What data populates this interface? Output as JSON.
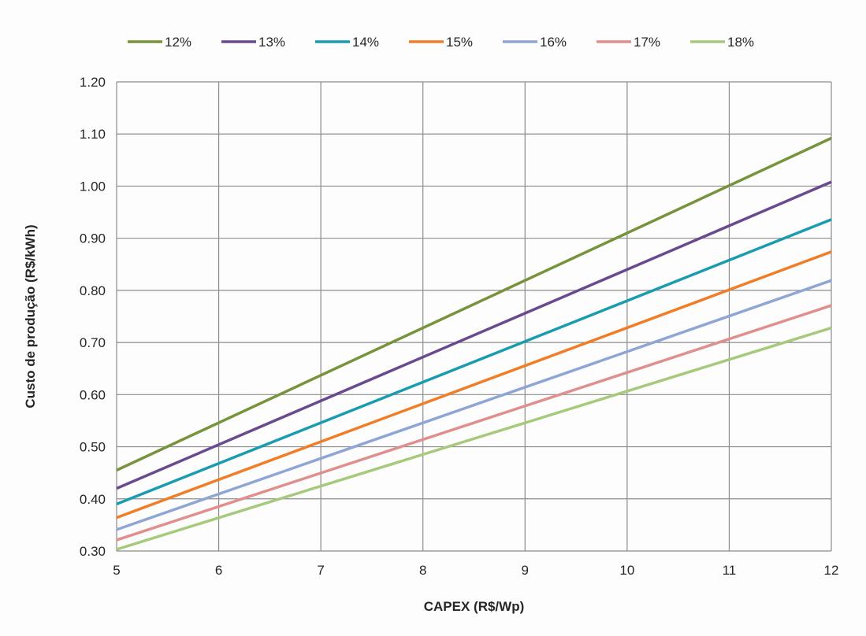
{
  "chart_data": {
    "type": "line",
    "xlabel": "CAPEX (R$/Wp)",
    "ylabel": "Custo de produção (R$/kWh)",
    "xlim": [
      5,
      12
    ],
    "ylim": [
      0.3,
      1.2
    ],
    "x_ticks": [
      "5",
      "6",
      "7",
      "8",
      "9",
      "10",
      "11",
      "12"
    ],
    "y_ticks": [
      "0.30",
      "0.40",
      "0.50",
      "0.60",
      "0.70",
      "0.80",
      "0.90",
      "1.00",
      "1.10",
      "1.20"
    ],
    "grid": true,
    "legend_position": "top",
    "x": [
      5,
      12
    ],
    "series": [
      {
        "name": "12%",
        "color": "#77933c",
        "values": [
          0.455,
          1.092
        ]
      },
      {
        "name": "13%",
        "color": "#6a4a8f",
        "values": [
          0.42,
          1.008
        ]
      },
      {
        "name": "14%",
        "color": "#1a9cb0",
        "values": [
          0.39,
          0.936
        ]
      },
      {
        "name": "15%",
        "color": "#f07d28",
        "values": [
          0.364,
          0.874
        ]
      },
      {
        "name": "16%",
        "color": "#8ea6d6",
        "values": [
          0.341,
          0.819
        ]
      },
      {
        "name": "17%",
        "color": "#e08f8d",
        "values": [
          0.321,
          0.771
        ]
      },
      {
        "name": "18%",
        "color": "#a6ca7c",
        "values": [
          0.303,
          0.728
        ]
      }
    ]
  }
}
